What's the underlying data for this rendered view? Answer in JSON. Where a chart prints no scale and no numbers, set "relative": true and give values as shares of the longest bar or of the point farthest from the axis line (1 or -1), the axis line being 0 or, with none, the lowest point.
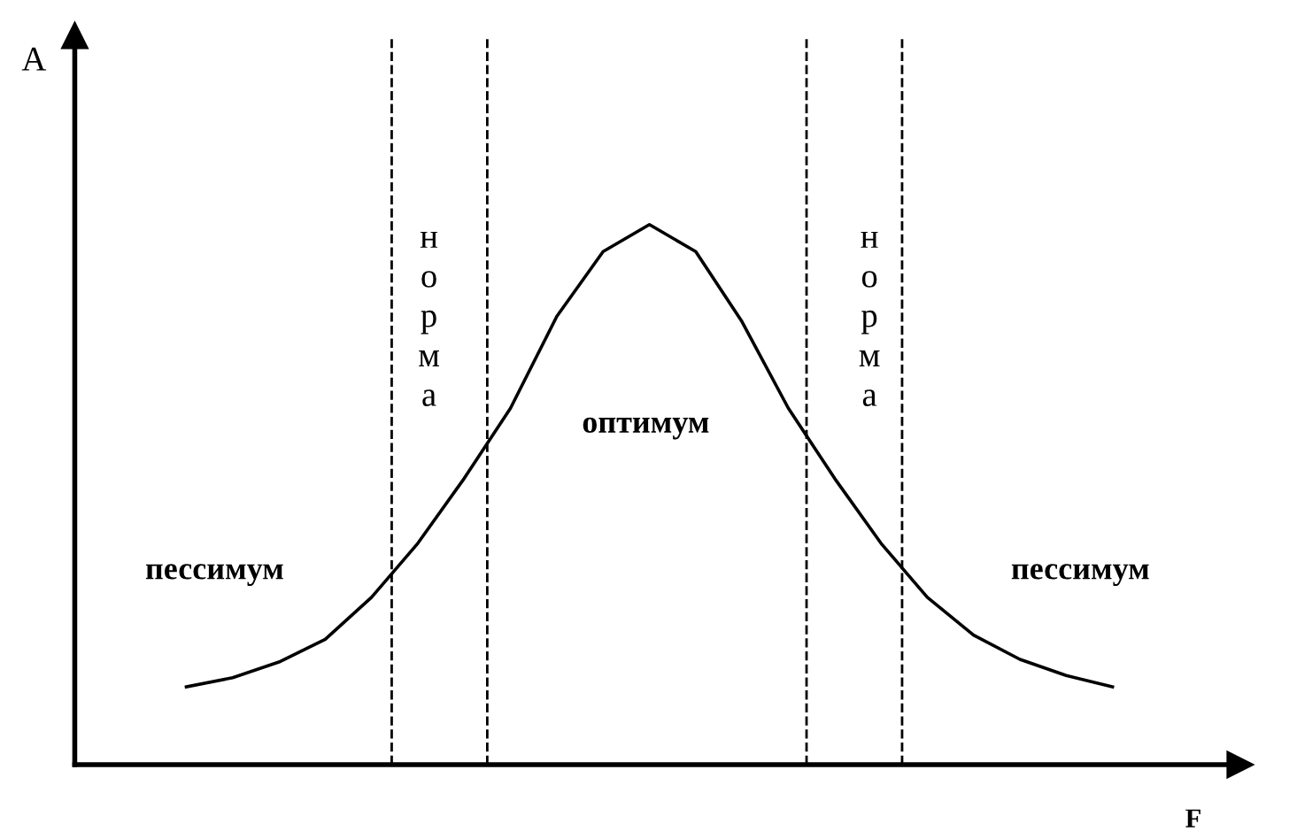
{
  "chart_data": {
    "type": "line",
    "relative": true,
    "xlabel": "F",
    "color": "#000000",
    "marker": "none",
    "line_style": "solid",
    "categories": [
      null,
      null,
      null,
      null,
      null,
      null,
      null,
      null,
      null,
      null,
      null,
      null,
      null,
      null,
      null,
      null,
      null,
      null,
      null,
      null,
      null
    ],
    "values": [
      0.144,
      0.161,
      0.19,
      0.232,
      0.31,
      0.41,
      0.53,
      0.66,
      0.83,
      0.95,
      1,
      0.95,
      0.82,
      0.66,
      0.53,
      0.41,
      0.31,
      0.24,
      0.195,
      0.165,
      0.144
    ],
    "annotations": [
      "A",
      "норма",
      "норма",
      "оптимум",
      "пессимум",
      "пессимум"
    ]
  }
}
